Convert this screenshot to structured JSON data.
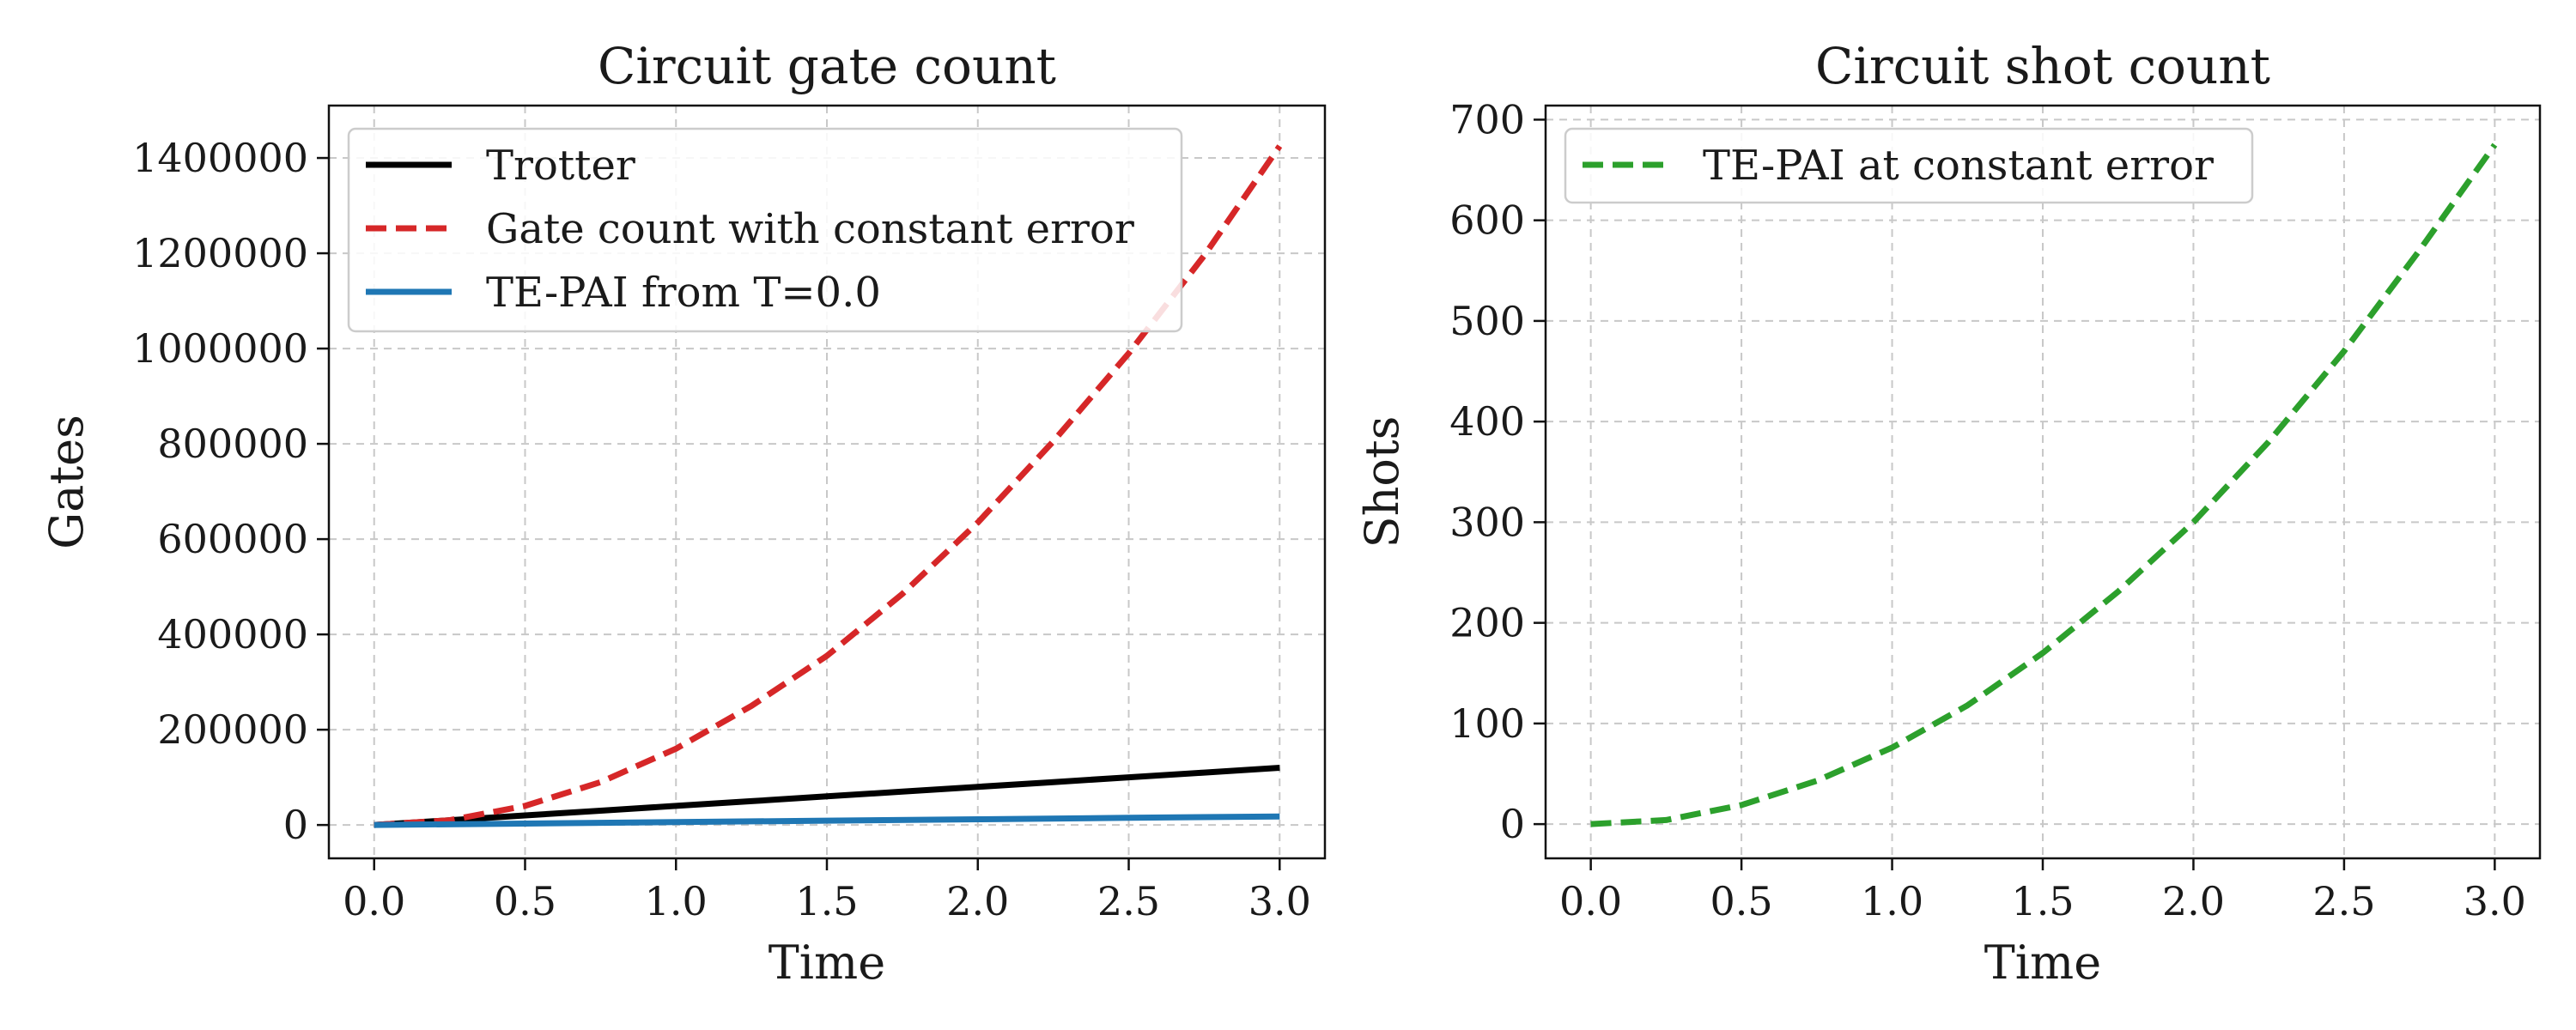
{
  "chart_data": [
    {
      "type": "line",
      "title": "Circuit gate count",
      "xlabel": "Time",
      "ylabel": "Gates",
      "xlim": [
        -0.15,
        3.15
      ],
      "ylim": [
        -70000,
        1510000
      ],
      "xticks": [
        0.0,
        0.5,
        1.0,
        1.5,
        2.0,
        2.5,
        3.0
      ],
      "xtick_labels": [
        "0.0",
        "0.5",
        "1.0",
        "1.5",
        "2.0",
        "2.5",
        "3.0"
      ],
      "yticks": [
        0,
        200000,
        400000,
        600000,
        800000,
        1000000,
        1200000,
        1400000
      ],
      "ytick_labels": [
        "0",
        "200000",
        "400000",
        "600000",
        "800000",
        "1000000",
        "1200000",
        "1400000"
      ],
      "grid": true,
      "legend_position": "top-left",
      "series": [
        {
          "name": "Trotter",
          "color": "#000000",
          "style": "solid",
          "x": [
            0.0,
            0.25,
            0.5,
            0.75,
            1.0,
            1.25,
            1.5,
            1.75,
            2.0,
            2.25,
            2.5,
            2.75,
            3.0
          ],
          "y": [
            0,
            10000,
            20000,
            30000,
            40000,
            50000,
            60000,
            70000,
            80000,
            90000,
            100000,
            110000,
            120000
          ]
        },
        {
          "name": "Gate count with constant error",
          "color": "#d62728",
          "style": "dashed",
          "x": [
            0.0,
            0.25,
            0.5,
            0.75,
            1.0,
            1.25,
            1.5,
            1.75,
            2.0,
            2.25,
            2.5,
            2.75,
            3.0
          ],
          "y": [
            0,
            10000,
            40000,
            90000,
            160000,
            250000,
            355000,
            485000,
            635000,
            805000,
            990000,
            1195000,
            1425000
          ]
        },
        {
          "name": "TE-PAI from T=0.0",
          "color": "#1f77b4",
          "style": "solid",
          "x": [
            0.0,
            0.5,
            1.0,
            1.5,
            2.0,
            2.5,
            3.0
          ],
          "y": [
            0,
            3000,
            6000,
            9000,
            12000,
            15000,
            18000
          ]
        }
      ]
    },
    {
      "type": "line",
      "title": "Circuit shot count",
      "xlabel": "Time",
      "ylabel": "Shots",
      "xlim": [
        -0.15,
        3.15
      ],
      "ylim": [
        -34,
        714
      ],
      "xticks": [
        0.0,
        0.5,
        1.0,
        1.5,
        2.0,
        2.5,
        3.0
      ],
      "xtick_labels": [
        "0.0",
        "0.5",
        "1.0",
        "1.5",
        "2.0",
        "2.5",
        "3.0"
      ],
      "yticks": [
        0,
        100,
        200,
        300,
        400,
        500,
        600,
        700
      ],
      "ytick_labels": [
        "0",
        "100",
        "200",
        "300",
        "400",
        "500",
        "600",
        "700"
      ],
      "grid": true,
      "legend_position": "top-left",
      "series": [
        {
          "name": "TE-PAI at constant error",
          "color": "#2ca02c",
          "style": "dashed",
          "x": [
            0.0,
            0.25,
            0.5,
            0.75,
            1.0,
            1.25,
            1.5,
            1.75,
            2.0,
            2.25,
            2.5,
            2.75,
            3.0
          ],
          "y": [
            0,
            4,
            19,
            43,
            76,
            118,
            170,
            231,
            300,
            380,
            470,
            570,
            675
          ]
        }
      ]
    }
  ]
}
